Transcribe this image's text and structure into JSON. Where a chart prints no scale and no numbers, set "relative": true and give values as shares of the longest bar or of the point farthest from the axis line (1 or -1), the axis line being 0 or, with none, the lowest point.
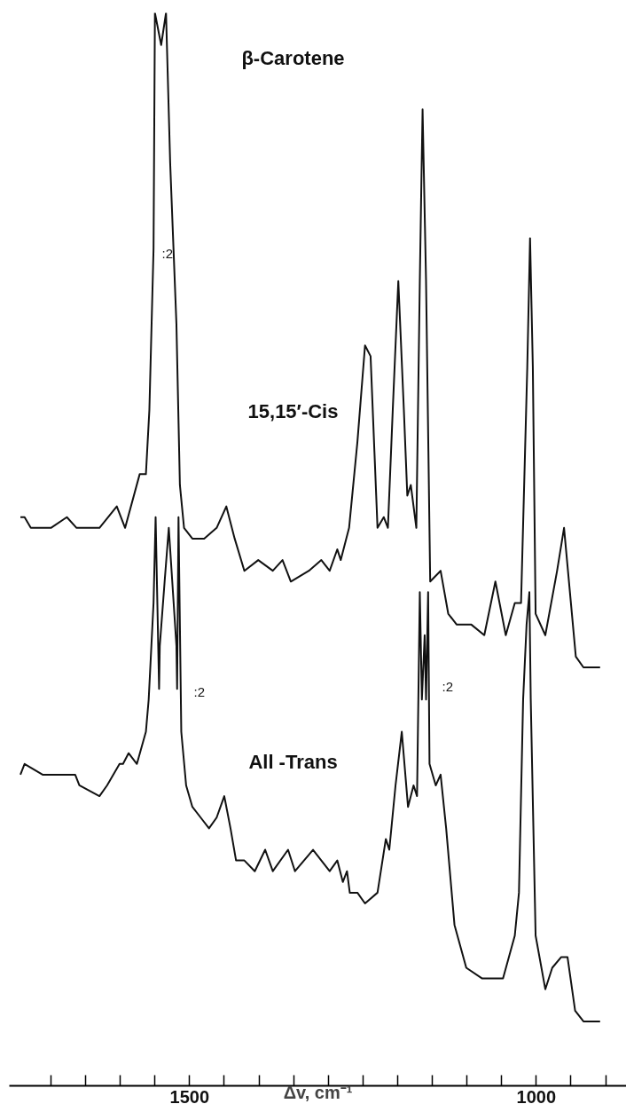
{
  "chart_data": {
    "type": "line",
    "title": "β-Carotene",
    "xlabel": "Δv, cm⁻¹",
    "relative": true,
    "xlim": [
      1760,
      870
    ],
    "xticks": [
      {
        "value": 1700,
        "label": null
      },
      {
        "value": 1650,
        "label": null
      },
      {
        "value": 1600,
        "label": null
      },
      {
        "value": 1550,
        "label": null
      },
      {
        "value": 1500,
        "label": "1500"
      },
      {
        "value": 1450,
        "label": null
      },
      {
        "value": 1400,
        "label": null
      },
      {
        "value": 1350,
        "label": null
      },
      {
        "value": 1300,
        "label": null
      },
      {
        "value": 1250,
        "label": null
      },
      {
        "value": 1200,
        "label": null
      },
      {
        "value": 1150,
        "label": null
      },
      {
        "value": 1100,
        "label": null
      },
      {
        "value": 1050,
        "label": null
      },
      {
        "value": 1000,
        "label": "1000"
      },
      {
        "value": 950,
        "label": null
      },
      {
        "value": 900,
        "label": null
      }
    ],
    "tick_labels": "x",
    "grid": false,
    "line_style": "solid",
    "series": [
      {
        "name": "15,15′-Cis",
        "color": "#111111",
        "x": [
          1744,
          1738,
          1729,
          1700,
          1677,
          1663,
          1630,
          1605,
          1593,
          1572,
          1563,
          1558,
          1552,
          1550,
          1541,
          1534,
          1528,
          1519,
          1514,
          1508,
          1496,
          1479,
          1461,
          1447,
          1435,
          1421,
          1401,
          1380,
          1366,
          1354,
          1328,
          1310,
          1298,
          1287,
          1282,
          1270,
          1258,
          1247,
          1239,
          1229,
          1220,
          1214,
          1207,
          1199,
          1191,
          1186,
          1181,
          1173,
          1168,
          1164,
          1159,
          1153,
          1138,
          1127,
          1115,
          1094,
          1075,
          1059,
          1044,
          1031,
          1022,
          1013,
          1009,
          1005,
          1001,
          987,
          970,
          960,
          943,
          932,
          908
        ],
        "values": [
          0.53,
          0.53,
          0.52,
          0.52,
          0.53,
          0.52,
          0.52,
          0.54,
          0.52,
          0.57,
          0.57,
          0.63,
          0.78,
          1.0,
          0.97,
          1.0,
          0.86,
          0.71,
          0.56,
          0.52,
          0.51,
          0.51,
          0.52,
          0.54,
          0.51,
          0.48,
          0.49,
          0.48,
          0.49,
          0.47,
          0.48,
          0.49,
          0.48,
          0.5,
          0.49,
          0.52,
          0.6,
          0.69,
          0.68,
          0.52,
          0.53,
          0.52,
          0.63,
          0.75,
          0.63,
          0.55,
          0.56,
          0.52,
          0.75,
          0.91,
          0.75,
          0.47,
          0.48,
          0.44,
          0.43,
          0.43,
          0.42,
          0.47,
          0.42,
          0.45,
          0.45,
          0.67,
          0.79,
          0.67,
          0.44,
          0.42,
          0.48,
          0.52,
          0.4,
          0.39,
          0.39
        ]
      },
      {
        "name": "All -Trans",
        "color": "#111111",
        "x": [
          1744,
          1738,
          1712,
          1682,
          1665,
          1659,
          1630,
          1619,
          1601,
          1596,
          1588,
          1576,
          1563,
          1559,
          1552,
          1549,
          1544,
          1543,
          1536,
          1530,
          1525,
          1519,
          1518,
          1516,
          1512,
          1505,
          1496,
          1484,
          1472,
          1461,
          1450,
          1441,
          1433,
          1421,
          1406,
          1391,
          1380,
          1358,
          1348,
          1322,
          1310,
          1298,
          1287,
          1279,
          1273,
          1269,
          1258,
          1247,
          1229,
          1217,
          1212,
          1203,
          1194,
          1185,
          1177,
          1172,
          1168,
          1165,
          1161,
          1159,
          1156,
          1154,
          1145,
          1138,
          1130,
          1118,
          1101,
          1078,
          1048,
          1031,
          1025,
          1019,
          1014,
          1010,
          1008,
          1001,
          987,
          977,
          964,
          955,
          944,
          932,
          908
        ],
        "values": [
          0.29,
          0.3,
          0.29,
          0.29,
          0.29,
          0.28,
          0.27,
          0.28,
          0.3,
          0.3,
          0.31,
          0.3,
          0.33,
          0.36,
          0.45,
          0.53,
          0.37,
          0.41,
          0.47,
          0.52,
          0.47,
          0.41,
          0.37,
          0.53,
          0.33,
          0.28,
          0.26,
          0.25,
          0.24,
          0.25,
          0.27,
          0.24,
          0.21,
          0.21,
          0.2,
          0.22,
          0.2,
          0.22,
          0.2,
          0.22,
          0.21,
          0.2,
          0.21,
          0.19,
          0.2,
          0.18,
          0.18,
          0.17,
          0.18,
          0.23,
          0.22,
          0.28,
          0.33,
          0.26,
          0.28,
          0.27,
          0.46,
          0.36,
          0.42,
          0.36,
          0.46,
          0.3,
          0.28,
          0.29,
          0.24,
          0.15,
          0.11,
          0.1,
          0.1,
          0.14,
          0.18,
          0.36,
          0.43,
          0.46,
          0.36,
          0.14,
          0.09,
          0.11,
          0.12,
          0.12,
          0.07,
          0.06,
          0.06
        ]
      }
    ],
    "annotations": [
      ":2",
      ":2",
      ":2"
    ]
  }
}
